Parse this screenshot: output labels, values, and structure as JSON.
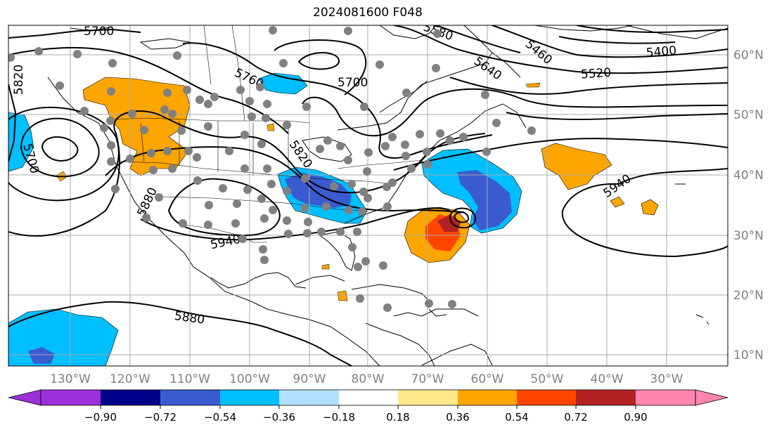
{
  "title": "2024081600 F048",
  "longitude_labels": [
    "130°W",
    "120°W",
    "110°W",
    "100°W",
    "90°W",
    "80°W",
    "70°W",
    "60°W",
    "50°W",
    "40°W",
    "30°W"
  ],
  "latitude_labels": [
    "60°N",
    "50°N",
    "40°N",
    "30°N",
    "20°N",
    "10°N"
  ],
  "contour_labels": [
    "5700",
    "5820",
    "5700",
    "5760",
    "5700",
    "5580",
    "5460",
    "5400",
    "5520",
    "5640",
    "5820",
    "5880",
    "5940",
    "5940",
    "5880"
  ],
  "colorbar": {
    "ticks": [
      "−0.90",
      "−0.72",
      "−0.54",
      "−0.36",
      "−0.18",
      "0.18",
      "0.36",
      "0.54",
      "0.72",
      "0.90"
    ],
    "colors": [
      "#9b30d8",
      "#00008b",
      "#3a5bd0",
      "#00bfff",
      "#b0e2ff",
      "#ffffff",
      "#ffe88a",
      "#ffa500",
      "#ff4500",
      "#b22222",
      "#ff85b0"
    ]
  },
  "map_colors": {
    "orange": "#ffa500",
    "red": "#ff4500",
    "dark_red": "#b22222",
    "blue": "#00bfff",
    "mid_blue": "#3a5bd0",
    "station": "#808080",
    "grid": "#aaaaaa"
  }
}
